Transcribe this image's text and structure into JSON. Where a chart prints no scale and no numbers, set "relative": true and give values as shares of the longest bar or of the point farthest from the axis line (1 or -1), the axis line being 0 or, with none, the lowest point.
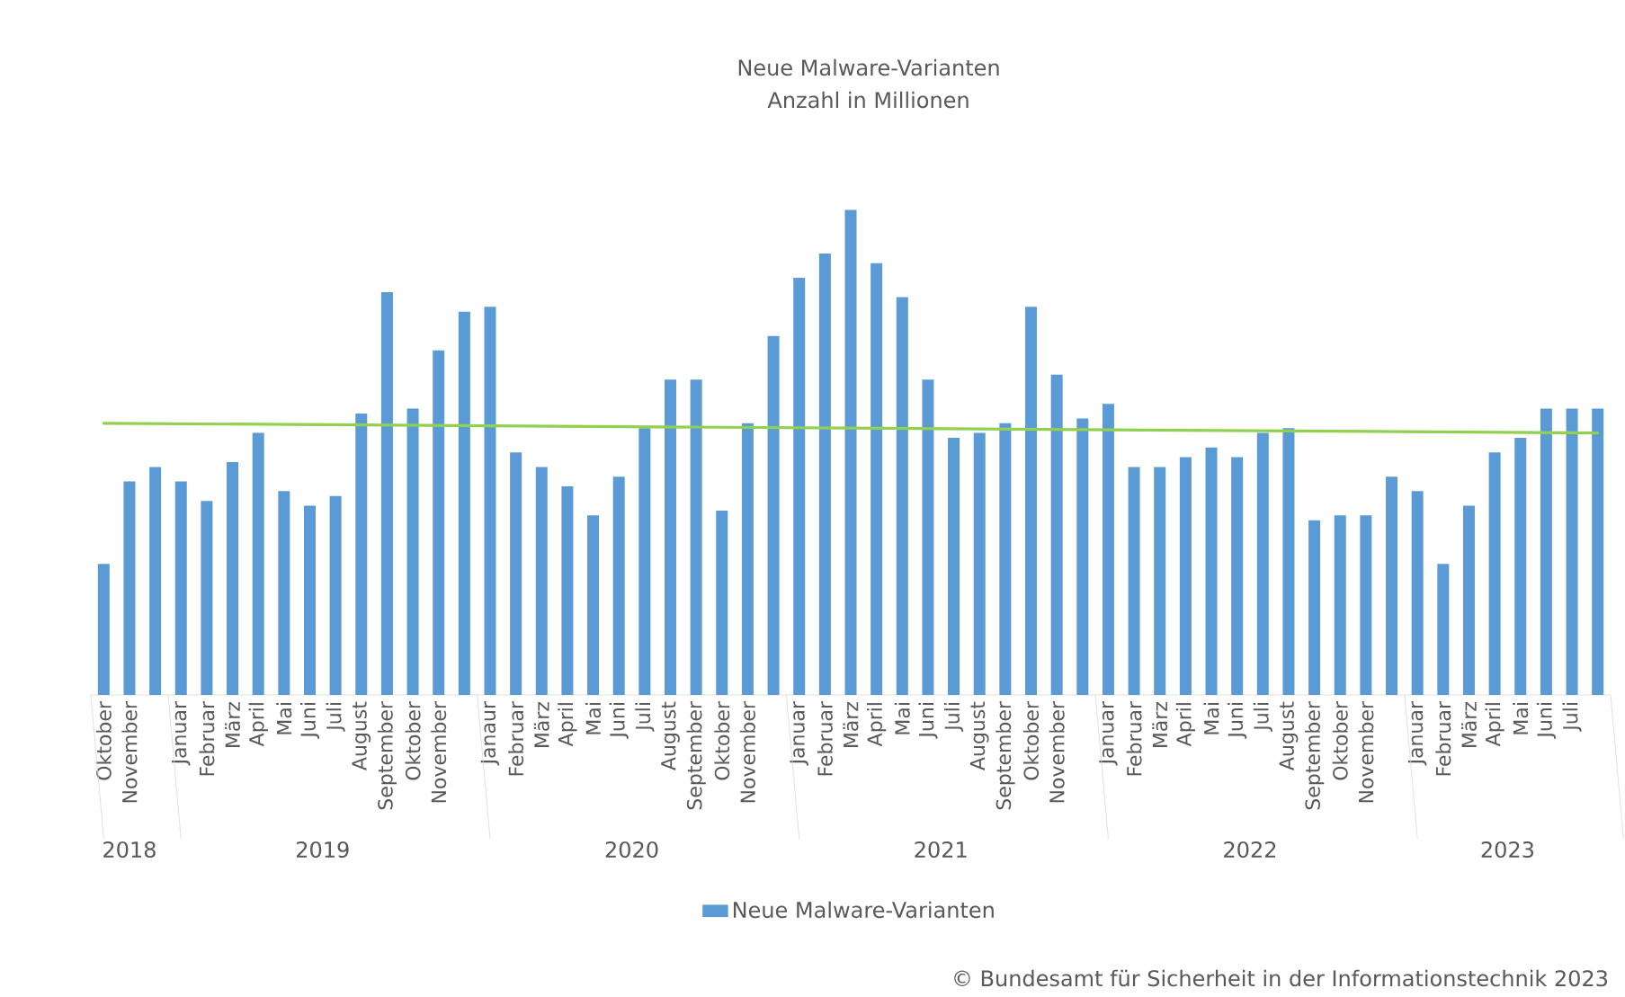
{
  "chart_data": {
    "type": "bar",
    "title": "Neue Malware-Varianten",
    "subtitle": "Anzahl in Millionen",
    "categories": [
      "Oktober",
      "November",
      null,
      "Januar",
      "Februar",
      "März",
      "April",
      "Mai",
      "Juni",
      "Juli",
      "August",
      "September",
      "Oktober",
      "November",
      null,
      "Janaur",
      "Februar",
      "März",
      "April",
      "Mai",
      "Juni",
      "Juli",
      "August",
      "September",
      "Oktober",
      "November",
      null,
      "Januar",
      "Februar",
      "März",
      "April",
      "Mai",
      "Juni",
      "Juli",
      "August",
      "September",
      "Oktober",
      "November",
      null,
      "Januar",
      "Februar",
      "März",
      "April",
      "Mai",
      "Juni",
      "Juli",
      "August",
      "September",
      "Oktober",
      "November",
      null,
      "Januar",
      "Februar",
      "März",
      "April",
      "Mai",
      "Juni",
      "Juli",
      null
    ],
    "relative": true,
    "series": [
      {
        "name": "Neue Malware-Varianten",
        "color": "#5b9bd5",
        "values": [
          0.27,
          0.44,
          0.47,
          0.44,
          0.4,
          0.48,
          0.54,
          0.42,
          0.39,
          0.41,
          0.58,
          0.83,
          0.59,
          0.71,
          0.79,
          0.8,
          0.5,
          0.47,
          0.43,
          0.37,
          0.45,
          0.55,
          0.65,
          0.65,
          0.38,
          0.56,
          0.74,
          0.86,
          0.91,
          1,
          0.89,
          0.82,
          0.65,
          0.53,
          0.54,
          0.56,
          0.8,
          0.66,
          0.57,
          0.6,
          0.47,
          0.47,
          0.49,
          0.51,
          0.49,
          0.54,
          0.55,
          0.36,
          0.37,
          0.37,
          0.45,
          0.42,
          0.27,
          0.39,
          0.5,
          0.53,
          0.59,
          0.59,
          0.59
        ]
      },
      {
        "type": "line",
        "color": "#92d050",
        "values": [
          0.56,
          null,
          null,
          null,
          null,
          null,
          null,
          null,
          null,
          null,
          null,
          null,
          null,
          null,
          null,
          null,
          null,
          null,
          null,
          null,
          null,
          null,
          null,
          null,
          null,
          null,
          null,
          null,
          null,
          null,
          null,
          null,
          null,
          null,
          null,
          null,
          null,
          null,
          null,
          null,
          null,
          null,
          null,
          null,
          null,
          null,
          null,
          null,
          null,
          null,
          null,
          null,
          null,
          null,
          null,
          null,
          null,
          null,
          0.54
        ]
      }
    ],
    "legend": "bottom",
    "annotations": [
      "2018",
      "2019",
      "2020",
      "2021",
      "2022",
      "2023",
      "© Bundesamt für Sicherheit in der Informationstechnik 2023"
    ]
  }
}
